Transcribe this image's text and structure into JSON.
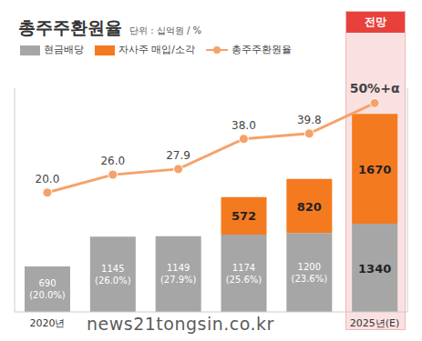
{
  "chart_data": {
    "type": "bar",
    "title": "총주주환원율",
    "subtitle": "단위 : 십억원 / %",
    "annotations": [
      "전망",
      "news21tongsin.co.kr"
    ],
    "categories": [
      "2020년",
      null,
      null,
      null,
      null,
      "2025년(E)"
    ],
    "stacked": true,
    "data_labels": true,
    "tick_labels": "x",
    "grid": false,
    "ylim": [
      0,
      3400
    ],
    "yticks": [
      0,
      3400
    ],
    "y2lim": [
      -20,
      55
    ],
    "y2ticks": [
      -20,
      55
    ],
    "series": [
      {
        "name": "현금배당",
        "type": "bar",
        "color": "#a6a6a6",
        "values": [
          690,
          1145,
          1149,
          1174,
          1200,
          1340
        ],
        "value_labels": [
          "690 (20.0%)",
          "1145 (26.0%)",
          "1149 (27.9%)",
          "1174 (25.6%)",
          "1200 (23.6%)",
          "1340"
        ]
      },
      {
        "name": "자사주 매입/소각",
        "type": "bar",
        "color": "#f47a20",
        "values": [
          null,
          null,
          null,
          572,
          820,
          1670
        ]
      },
      {
        "name": "총주주환원율",
        "type": "line",
        "axis": "y2",
        "color": "#f5a26a",
        "marker": "circle",
        "values": [
          20.0,
          26.0,
          27.9,
          38.0,
          39.8,
          50
        ],
        "value_labels": [
          "20.0",
          "26.0",
          "27.9",
          "38.0",
          "39.8",
          "50%+α"
        ]
      }
    ]
  }
}
